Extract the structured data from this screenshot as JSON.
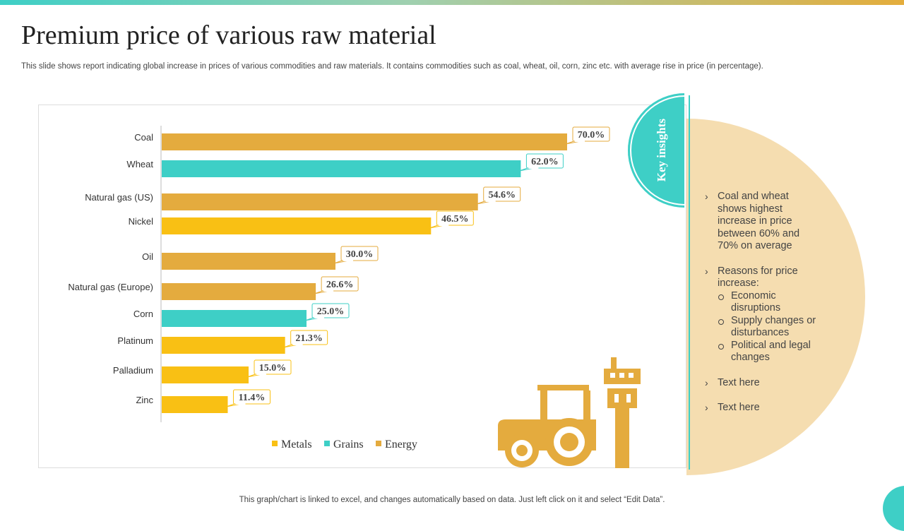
{
  "slide": {
    "title": "Premium price of various raw material",
    "subtitle": "This slide shows report indicating global increase in prices of various commodities and raw materials. It contains commodities such as coal, wheat, oil, corn, zinc etc. with average rise in price (in percentage).",
    "footnote": "This graph/chart is linked to excel,  and changes automatically based on data. Just left click on it and select “Edit Data”."
  },
  "colors": {
    "metals": "#f9c014",
    "grains": "#3ecfc6",
    "energy": "#e4ab3e",
    "accent_teal": "#3ecfc6",
    "panel": "#f5ddb0"
  },
  "chart_data": {
    "type": "bar",
    "orientation": "horizontal",
    "value_format": "percent",
    "xlim": [
      0,
      70
    ],
    "grid": false,
    "legend_position": "bottom",
    "categories": [
      "Coal",
      "Wheat",
      "Natural gas (US)",
      "Nickel",
      "Oil",
      "Natural gas (Europe)",
      "Corn",
      "Platinum",
      "Palladium",
      "Zinc"
    ],
    "values": [
      70.0,
      62.0,
      54.6,
      46.5,
      30.0,
      26.6,
      25.0,
      21.3,
      15.0,
      11.4
    ],
    "value_labels": [
      "70.0%",
      "62.0%",
      "54.6%",
      "46.5%",
      "30.0%",
      "26.6%",
      "25.0%",
      "21.3%",
      "15.0%",
      "11.4%"
    ],
    "groups": [
      "Energy",
      "Grains",
      "Energy",
      "Metals",
      "Energy",
      "Energy",
      "Grains",
      "Metals",
      "Metals",
      "Metals"
    ],
    "legend": [
      "Metals",
      "Grains",
      "Energy"
    ]
  },
  "insights": {
    "title": "Key insights",
    "points": [
      "Coal and wheat shows highest increase in price between 60% and 70% on average",
      "Reasons for price increase:",
      "Text here",
      "Text here"
    ],
    "reasons": [
      "Economic disruptions",
      "Supply changes or disturbances",
      "Political and legal changes"
    ]
  }
}
